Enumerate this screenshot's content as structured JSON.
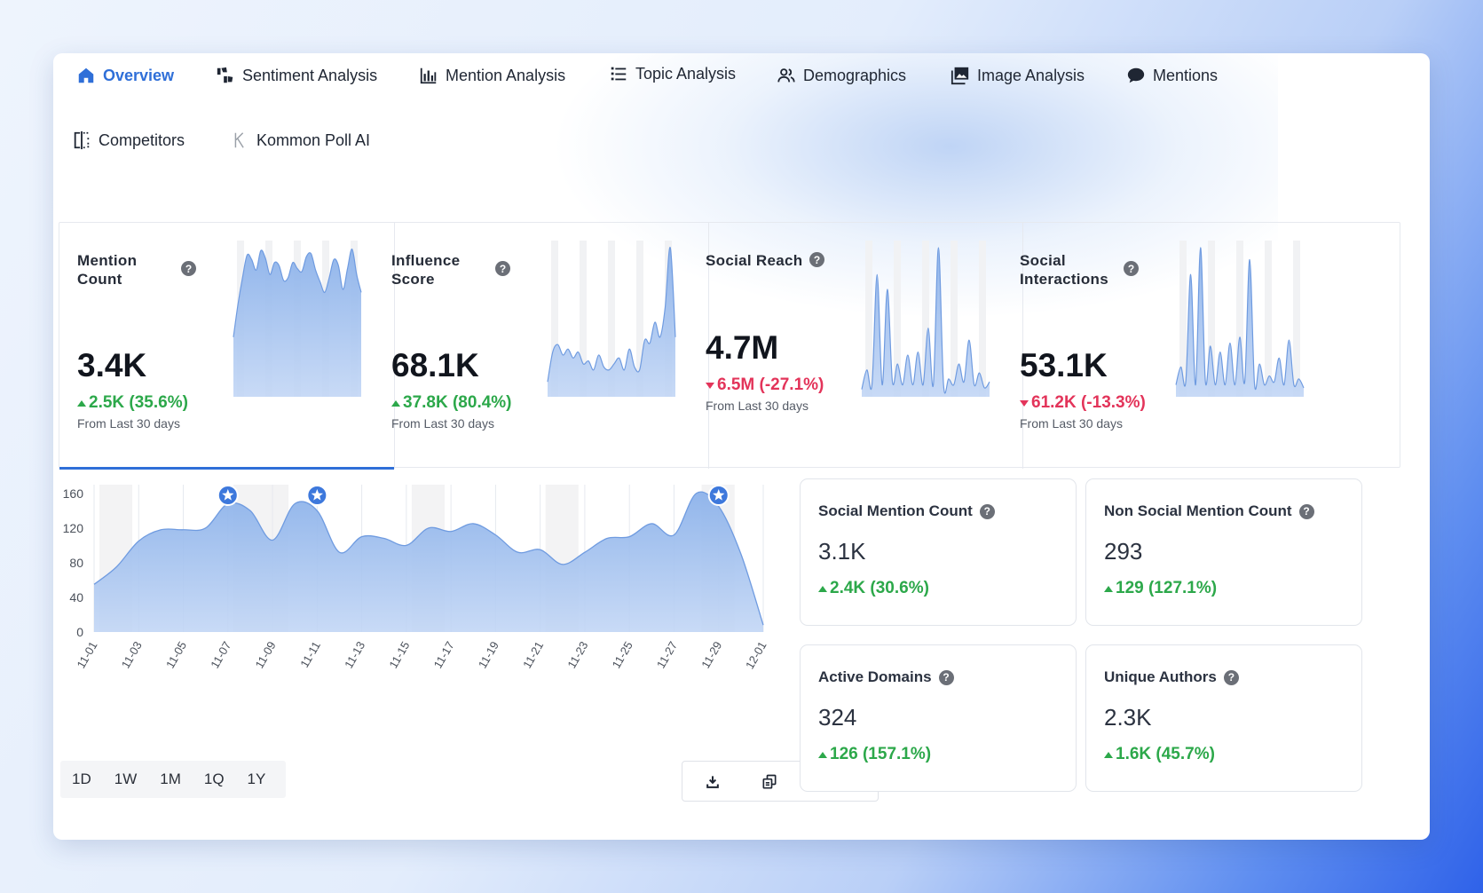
{
  "nav": {
    "items": [
      {
        "label": "Overview",
        "icon": "home-icon",
        "active": true
      },
      {
        "label": "Sentiment Analysis",
        "icon": "thumbs-icon"
      },
      {
        "label": "Mention Analysis",
        "icon": "bar-chart-icon"
      },
      {
        "label": "Topic Analysis",
        "icon": "list-icon"
      },
      {
        "label": "Demographics",
        "icon": "users-icon"
      },
      {
        "label": "Image Analysis",
        "icon": "image-icon"
      },
      {
        "label": "Mentions",
        "icon": "chat-bubble-icon"
      },
      {
        "label": "Competitors",
        "icon": "compare-icon"
      },
      {
        "label": "Kommon Poll AI",
        "icon": "kommon-logo-icon"
      }
    ]
  },
  "kpis": [
    {
      "title": "Mention Count",
      "value": "3.4K",
      "delta": "2.5K (35.6%)",
      "direction": "up",
      "sub": "From Last 30 days",
      "selected": true,
      "spark": [
        40,
        62,
        80,
        95,
        92,
        85,
        98,
        93,
        82,
        90,
        88,
        78,
        80,
        90,
        86,
        84,
        94,
        96,
        85,
        77,
        70,
        80,
        92,
        88,
        72,
        86,
        99,
        82,
        70
      ]
    },
    {
      "title": "Influence Score",
      "value": "68.1K",
      "delta": "37.8K (80.4%)",
      "direction": "up",
      "sub": "From Last 30 days",
      "selected": false,
      "spark": [
        10,
        30,
        35,
        28,
        32,
        26,
        30,
        22,
        24,
        18,
        28,
        20,
        18,
        22,
        26,
        18,
        32,
        20,
        18,
        38,
        36,
        50,
        40,
        60,
        100,
        40
      ]
    },
    {
      "title": "Social Reach",
      "value": "4.7M",
      "delta": "6.5M (-27.1%)",
      "direction": "down",
      "sub": "From Last 30 days",
      "selected": false,
      "spark": [
        5,
        18,
        8,
        82,
        8,
        72,
        10,
        22,
        8,
        28,
        8,
        30,
        8,
        46,
        8,
        100,
        8,
        12,
        8,
        22,
        10,
        38,
        8,
        16,
        6,
        10
      ]
    },
    {
      "title": "Social Interactions",
      "value": "53.1K",
      "delta": "61.2K (-13.3%)",
      "direction": "down",
      "sub": "From Last 30 days",
      "selected": false,
      "spark": [
        8,
        20,
        10,
        82,
        8,
        100,
        10,
        34,
        8,
        30,
        8,
        36,
        8,
        40,
        10,
        92,
        8,
        22,
        8,
        14,
        10,
        26,
        8,
        38,
        8,
        12,
        6
      ]
    }
  ],
  "chart_data": {
    "type": "area",
    "x": [
      "11-01",
      "11-02",
      "11-03",
      "11-04",
      "11-05",
      "11-06",
      "11-07",
      "11-08",
      "11-09",
      "11-10",
      "11-11",
      "11-12",
      "11-13",
      "11-14",
      "11-15",
      "11-16",
      "11-17",
      "11-18",
      "11-19",
      "11-20",
      "11-21",
      "11-22",
      "11-23",
      "11-24",
      "11-25",
      "11-26",
      "11-27",
      "11-28",
      "11-29",
      "11-30",
      "12-01"
    ],
    "x_tick_labels": [
      "11-01",
      "11-03",
      "11-05",
      "11-07",
      "11-09",
      "11-11",
      "11-13",
      "11-15",
      "11-17",
      "11-19",
      "11-21",
      "11-23",
      "11-25",
      "11-27",
      "11-29",
      "12-01"
    ],
    "values": [
      55,
      75,
      105,
      118,
      118,
      120,
      148,
      140,
      106,
      148,
      140,
      92,
      110,
      108,
      100,
      120,
      116,
      125,
      112,
      92,
      95,
      78,
      92,
      108,
      110,
      125,
      112,
      160,
      145,
      90,
      8
    ],
    "yticks": [
      0,
      40,
      80,
      120,
      160
    ],
    "ylim": [
      0,
      170
    ],
    "markers": [
      "11-07",
      "11-11",
      "11-29"
    ],
    "marker_icon": "star-badge-icon",
    "color": "#8fb4ea"
  },
  "ranges": [
    "1D",
    "1W",
    "1M",
    "1Q",
    "1Y"
  ],
  "tools": [
    {
      "icon": "download-icon"
    },
    {
      "icon": "copy-icon"
    },
    {
      "icon": "fullscreen-icon"
    },
    {
      "icon": "ai-sparkle-icon"
    }
  ],
  "stats": [
    {
      "title": "Social Mention Count",
      "value": "3.1K",
      "delta": "2.4K (30.6%)",
      "direction": "up"
    },
    {
      "title": "Non Social Mention Count",
      "value": "293",
      "delta": "129 (127.1%)",
      "direction": "up"
    },
    {
      "title": "Active Domains",
      "value": "324",
      "delta": "126 (157.1%)",
      "direction": "up"
    },
    {
      "title": "Unique Authors",
      "value": "2.3K",
      "delta": "1.6K (45.7%)",
      "direction": "up"
    }
  ],
  "colors": {
    "accent": "#2f6fd8",
    "up": "#2ca84a",
    "down": "#e3345a",
    "area": "#8fb4ea"
  }
}
